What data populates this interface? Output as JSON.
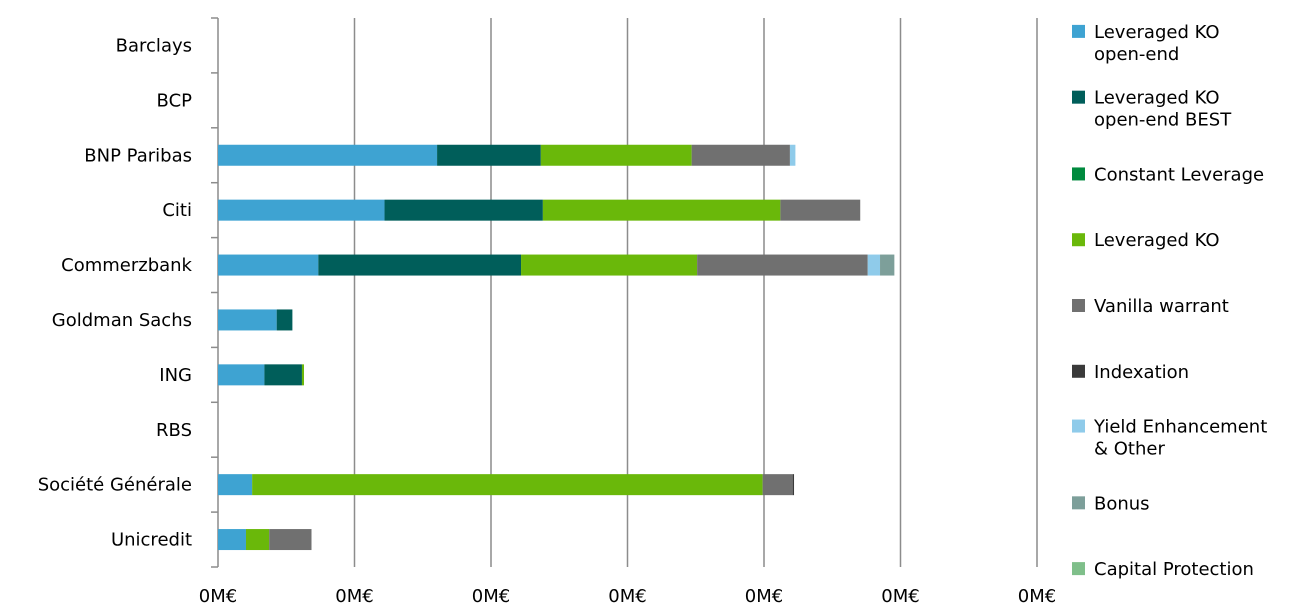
{
  "chart_data": {
    "type": "bar",
    "orientation": "horizontal",
    "stacked": true,
    "categories": [
      "Barclays",
      "BCP",
      "BNP Paribas",
      "Citi",
      "Commerzbank",
      "Goldman Sachs",
      "ING",
      "RBS",
      "Société Générale",
      "Unicredit"
    ],
    "x_tick_labels": [
      "0M€",
      "0M€",
      "0M€",
      "0M€",
      "0M€",
      "0M€",
      "0M€"
    ],
    "xlim": [
      0,
      6
    ],
    "grid": "vertical",
    "legend_position": "right",
    "series": [
      {
        "name": "Leveraged KO open-end",
        "color": "#3ea3d2",
        "values": [
          0,
          0,
          1.605,
          1.22,
          0.735,
          0.43,
          0.34,
          0,
          0.25,
          0.205
        ]
      },
      {
        "name": "Leveraged KO open-end BEST",
        "color": "#005e5a",
        "values": [
          0,
          0,
          0.76,
          1.16,
          1.485,
          0.115,
          0.275,
          0,
          0,
          0
        ]
      },
      {
        "name": "Constant Leverage",
        "color": "#008a3e",
        "values": [
          0,
          0,
          0,
          0,
          0,
          0,
          0,
          0,
          0,
          0
        ]
      },
      {
        "name": "Leveraged KO",
        "color": "#6ab80a",
        "values": [
          0,
          0,
          1.105,
          1.74,
          1.29,
          0,
          0.015,
          0,
          3.74,
          0.17
        ]
      },
      {
        "name": "Vanilla warrant",
        "color": "#707070",
        "values": [
          0,
          0,
          0.72,
          0.585,
          1.25,
          0,
          0,
          0,
          0.22,
          0.31
        ]
      },
      {
        "name": "Indexation",
        "color": "#3a3a3a",
        "values": [
          0,
          0,
          0,
          0,
          0,
          0,
          0,
          0,
          0.01,
          0
        ]
      },
      {
        "name": "Yield Enhancement & Other",
        "color": "#8fcbea",
        "values": [
          0,
          0,
          0.04,
          0,
          0.09,
          0,
          0,
          0,
          0,
          0
        ]
      },
      {
        "name": "Bonus",
        "color": "#7d9f9a",
        "values": [
          0,
          0,
          0,
          0,
          0.105,
          0,
          0,
          0,
          0,
          0
        ]
      },
      {
        "name": "Capital Protection",
        "color": "#7fbf8a",
        "values": [
          0,
          0,
          0,
          0,
          0,
          0,
          0,
          0,
          0,
          0
        ]
      }
    ],
    "legend_entries": [
      [
        "Leveraged KO",
        "open-end"
      ],
      [
        "Leveraged KO",
        "open-end BEST"
      ],
      [
        "Constant Leverage"
      ],
      [
        "Leveraged KO"
      ],
      [
        "Vanilla warrant"
      ],
      [
        "Indexation"
      ],
      [
        "Yield Enhancement",
        "& Other"
      ],
      [
        "Bonus"
      ],
      [
        "Capital Protection"
      ]
    ]
  }
}
